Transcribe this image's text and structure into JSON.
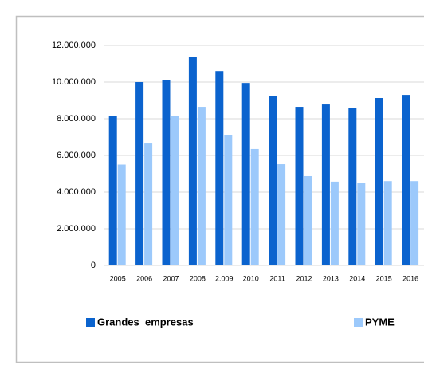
{
  "chart_data": {
    "type": "bar",
    "categories": [
      "2005",
      "2006",
      "2007",
      "2008",
      "2.009",
      "2010",
      "2011",
      "2012",
      "2013",
      "2014",
      "2015",
      "2016"
    ],
    "series": [
      {
        "name": "Grandes  empresas",
        "color": "#0b63ce",
        "values": [
          8150000,
          10000000,
          10100000,
          11350000,
          10600000,
          9950000,
          9260000,
          8650000,
          8780000,
          8570000,
          9130000,
          9300000
        ]
      },
      {
        "name": "PYME",
        "color": "#9cc9fb",
        "values": [
          5500000,
          6650000,
          8130000,
          8650000,
          7130000,
          6350000,
          5520000,
          4870000,
          4570000,
          4520000,
          4600000,
          4600000
        ]
      }
    ],
    "ylim": [
      0,
      12000000
    ],
    "yticks": [
      {
        "value": 0,
        "label": "0"
      },
      {
        "value": 2000000,
        "label": "2.000.000"
      },
      {
        "value": 4000000,
        "label": "4.000.000"
      },
      {
        "value": 6000000,
        "label": "6.000.000"
      },
      {
        "value": 8000000,
        "label": "8.000.000"
      },
      {
        "value": 10000000,
        "label": "10.000.000"
      },
      {
        "value": 12000000,
        "label": "12.000.000"
      }
    ],
    "grid": true,
    "legend": "bottom"
  }
}
